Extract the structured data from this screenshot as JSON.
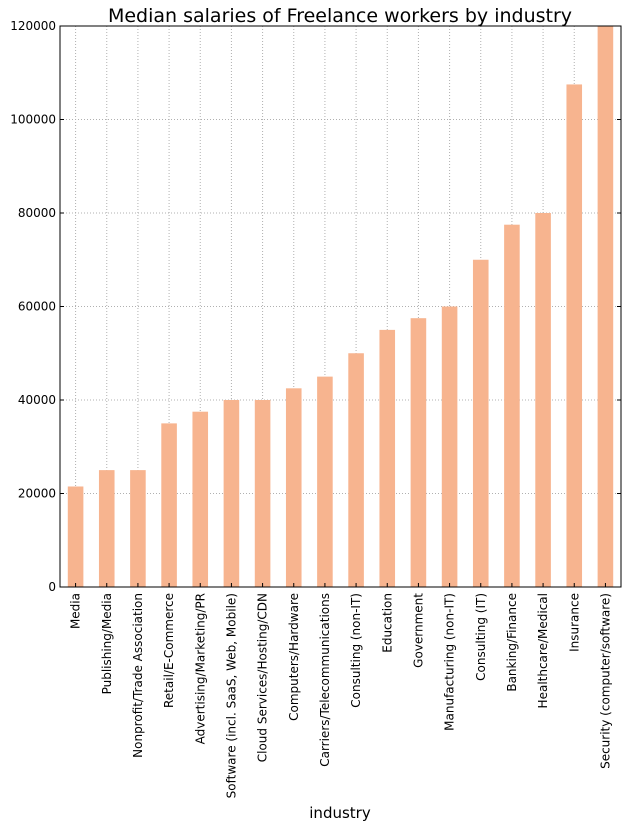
{
  "chart_data": {
    "type": "bar",
    "title": "Median salaries of Freelance workers by industry",
    "xlabel": "industry",
    "ylabel": "",
    "ylim": [
      0,
      120000
    ],
    "yticks": [
      "0",
      "20000",
      "40000",
      "60000",
      "80000",
      "100000",
      "120000"
    ],
    "ytick_values": [
      0,
      20000,
      40000,
      60000,
      80000,
      100000,
      120000
    ],
    "grid": true,
    "bar_color": "#f7b48f",
    "categories": [
      "Media",
      "Publishing/Media",
      "Nonprofit/Trade Association",
      "Retail/E-Commerce",
      "Advertising/Marketing/PR",
      "Software (incl. SaaS, Web, Mobile)",
      "Cloud Services/Hosting/CDN",
      "Computers/Hardware",
      "Carriers/Telecommunications",
      "Consulting (non-IT)",
      "Education",
      "Government",
      "Manufacturing (non-IT)",
      "Consulting (IT)",
      "Banking/Finance",
      "Healthcare/Medical",
      "Insurance",
      "Security (computer/software)"
    ],
    "values": [
      21500,
      25000,
      25000,
      35000,
      37500,
      40000,
      40000,
      42500,
      45000,
      50000,
      55000,
      57500,
      60000,
      70000,
      77500,
      80000,
      107500,
      120000
    ]
  }
}
